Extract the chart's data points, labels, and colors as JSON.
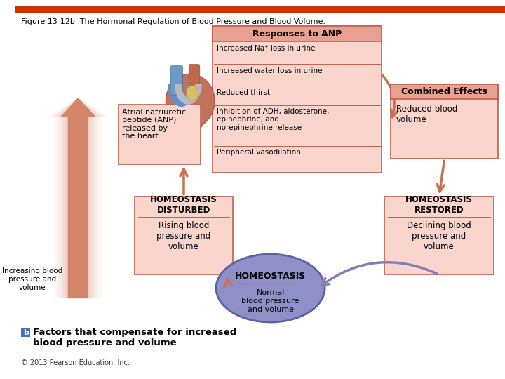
{
  "title": "Figure 13-12b  The Hormonal Regulation of Blood Pressure and Blood Volume.",
  "title_color": "#000000",
  "title_fontsize": 8,
  "background_color": "#FFFFFF",
  "top_bar_color": "#CC3300",
  "responses_box": {
    "title": "Responses to ANP",
    "title_bg": "#E8A090",
    "box_bg": "#FAD5CE",
    "border_color": "#C06050",
    "items": [
      "Increased Na⁺ loss in urine",
      "Increased water loss in urine",
      "Reduced thirst",
      "Inhibition of ADH, aldosterone,\nepinephrine, and\nnorepinephrine release",
      "Peripheral vasodilation"
    ]
  },
  "combined_box": {
    "title": "Combined Effects",
    "title_bg": "#E8A090",
    "box_bg": "#FAD5CE",
    "border_color": "#C06050",
    "text": "Reduced blood\nvolume"
  },
  "anp_box": {
    "text": "Atrial natriuretic\npeptide (ANP)\nreleased by\nthe heart",
    "box_bg": "#FAD5CE",
    "border_color": "#C06050"
  },
  "disturbed_box": {
    "title": "HOMEOSTASIS\nDISTURBED",
    "text": "Rising blood\npressure and\nvolume",
    "box_bg": "#FAD5CE",
    "border_color": "#C06050"
  },
  "restored_box": {
    "title": "HOMEOSTASIS\nRESTORED",
    "text": "Declining blood\npressure and\nvolume",
    "box_bg": "#FAD5CE",
    "border_color": "#C06050"
  },
  "homeostasis_ellipse": {
    "title": "HOMEOSTASIS",
    "text": "Normal\nblood pressure\nand volume",
    "bg_color": "#9090C8",
    "border_color": "#6060A0"
  },
  "big_arrow_color": "#D4856A",
  "big_arrow_color_light": "#EBC5B5",
  "small_arrow_color": "#C87050",
  "purple_arrow_color": "#8080B8",
  "increasing_label": "Increasing blood\npressure and\nvolume",
  "subtitle_text": "Factors that compensate for increased\nblood pressure and volume",
  "copyright": "© 2013 Pearson Education, Inc.",
  "b_box_color": "#4472C4"
}
